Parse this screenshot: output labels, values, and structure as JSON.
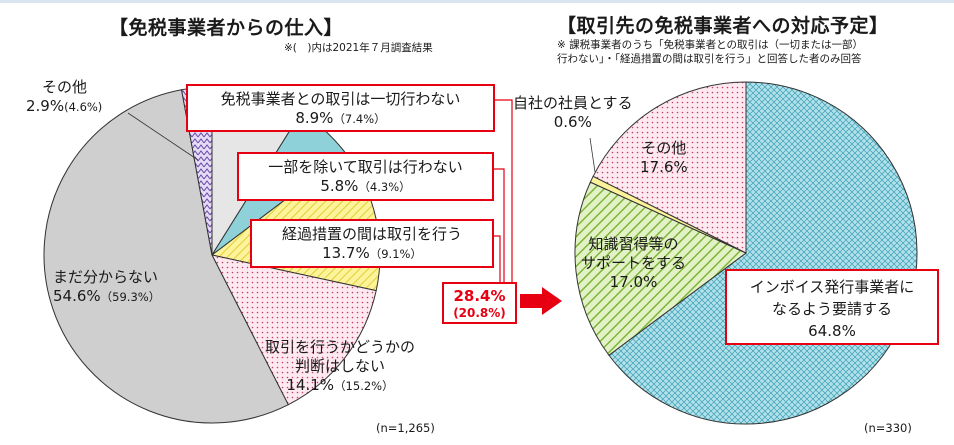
{
  "left": {
    "title": "【免税事業者からの仕入】",
    "note": "※(　)内は2021年７月調査結果",
    "n": "(n=1,265)",
    "slices": [
      {
        "key": "none",
        "label": "免税事業者との取引は一切行わない",
        "value": 8.9,
        "prev": 7.4,
        "pct": "8.9%",
        "prev_text": "（7.4%）",
        "color": "#e6e6e6",
        "pattern": "solid"
      },
      {
        "key": "partial",
        "label": "一部を除いて取引は行わない",
        "value": 5.8,
        "prev": 4.3,
        "pct": "5.8%",
        "prev_text": "（4.3%）",
        "color": "#8ed1d8",
        "pattern": "solid"
      },
      {
        "key": "transition",
        "label": "経過措置の間は取引を行う",
        "value": 13.7,
        "prev": 9.1,
        "pct": "13.7%",
        "prev_text": "（9.1%）",
        "color": "#fdf39a",
        "pattern": "diag"
      },
      {
        "key": "undecided",
        "label": "取引を行うかどうかの判断はしない",
        "value": 14.1,
        "prev": 15.2,
        "pct": "14.1%",
        "prev_text": "（15.2%）",
        "color": "#fde8ee",
        "pattern": "dots"
      },
      {
        "key": "unknown",
        "label": "まだ分からない",
        "value": 54.6,
        "prev": 59.3,
        "pct": "54.6%",
        "prev_text": "（59.3%）",
        "color": "#d0cfcf",
        "pattern": "solid"
      },
      {
        "key": "other",
        "label": "その他",
        "value": 2.9,
        "prev": 4.6,
        "pct": "2.9%",
        "prev_text": "(4.6%)",
        "color": "#c9b8e8",
        "pattern": "zigzag"
      }
    ],
    "label_line1": {
      "undecided": "取引を行うかどうかの",
      "undecided2": "判断はしない"
    }
  },
  "arrow": {
    "pct": "28.4%",
    "prev": "(20.8%)"
  },
  "right": {
    "title": "【取引先の免税事業者への対応予定】",
    "note1": "※ 課税事業者のうち「免税事業者との取引は（一切または一部）",
    "note2": "行わない」・「経過措置の間は取引を行う」と回答した者のみ回答",
    "n": "(n=330)",
    "slices": [
      {
        "key": "invoice",
        "label": "インボイス発行事業者に",
        "label2": "なるよう要請する",
        "value": 64.8,
        "pct": "64.8%",
        "color": "#a9dde8",
        "pattern": "cross"
      },
      {
        "key": "support",
        "label": "知識習得等の",
        "label2": "サポートをする",
        "value": 17.0,
        "pct": "17.0%",
        "color": "#bfe08a",
        "pattern": "diag"
      },
      {
        "key": "employee",
        "label": "自社の社員とする",
        "value": 0.6,
        "pct": "0.6%",
        "color": "#fdf39a",
        "pattern": "solid"
      },
      {
        "key": "other",
        "label": "その他",
        "value": 17.6,
        "pct": "17.6%",
        "color": "#fde8ee",
        "pattern": "dots"
      }
    ]
  },
  "chart_data": [
    {
      "type": "pie",
      "title": "【免税事業者からの仕入】",
      "categories": [
        "免税事業者との取引は一切行わない",
        "一部を除いて取引は行わない",
        "経過措置の間は取引を行う",
        "取引を行うかどうかの判断はしない",
        "まだ分からない",
        "その他"
      ],
      "series": [
        {
          "values": [
            8.9,
            5.8,
            13.7,
            14.1,
            54.6,
            2.9
          ]
        },
        {
          "values": [
            7.4,
            4.3,
            9.1,
            15.2,
            59.3,
            4.6
          ]
        }
      ],
      "annotation": "28.4% (20.8%)"
    },
    {
      "type": "pie",
      "title": "【取引先の免税事業者への対応予定】",
      "categories": [
        "インボイス発行事業者になるよう要請する",
        "知識習得等のサポートをする",
        "自社の社員とする",
        "その他"
      ],
      "values": [
        64.8,
        17.0,
        0.6,
        17.6
      ]
    }
  ]
}
